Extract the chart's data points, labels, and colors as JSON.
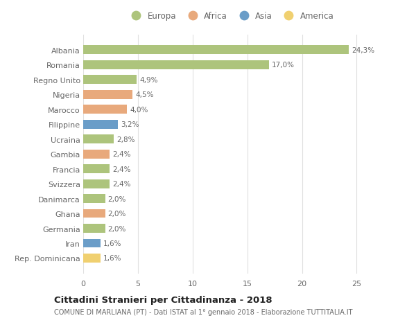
{
  "countries": [
    "Albania",
    "Romania",
    "Regno Unito",
    "Nigeria",
    "Marocco",
    "Filippine",
    "Ucraina",
    "Gambia",
    "Francia",
    "Svizzera",
    "Danimarca",
    "Ghana",
    "Germania",
    "Iran",
    "Rep. Dominicana"
  ],
  "values": [
    24.3,
    17.0,
    4.9,
    4.5,
    4.0,
    3.2,
    2.8,
    2.4,
    2.4,
    2.4,
    2.0,
    2.0,
    2.0,
    1.6,
    1.6
  ],
  "labels": [
    "24,3%",
    "17,0%",
    "4,9%",
    "4,5%",
    "4,0%",
    "3,2%",
    "2,8%",
    "2,4%",
    "2,4%",
    "2,4%",
    "2,0%",
    "2,0%",
    "2,0%",
    "1,6%",
    "1,6%"
  ],
  "continents": [
    "Europa",
    "Europa",
    "Europa",
    "Africa",
    "Africa",
    "Asia",
    "Europa",
    "Africa",
    "Europa",
    "Europa",
    "Europa",
    "Africa",
    "Europa",
    "Asia",
    "America"
  ],
  "colors": {
    "Europa": "#adc47c",
    "Africa": "#e8a97c",
    "Asia": "#6a9dc8",
    "America": "#f0d070"
  },
  "legend_labels": [
    "Europa",
    "Africa",
    "Asia",
    "America"
  ],
  "title": "Cittadini Stranieri per Cittadinanza - 2018",
  "subtitle": "COMUNE DI MARLIANA (PT) - Dati ISTAT al 1° gennaio 2018 - Elaborazione TUTTITALIA.IT",
  "xlim": [
    0,
    27
  ],
  "xticks": [
    0,
    5,
    10,
    15,
    20,
    25
  ],
  "background_color": "#ffffff",
  "grid_color": "#e0e0e0"
}
